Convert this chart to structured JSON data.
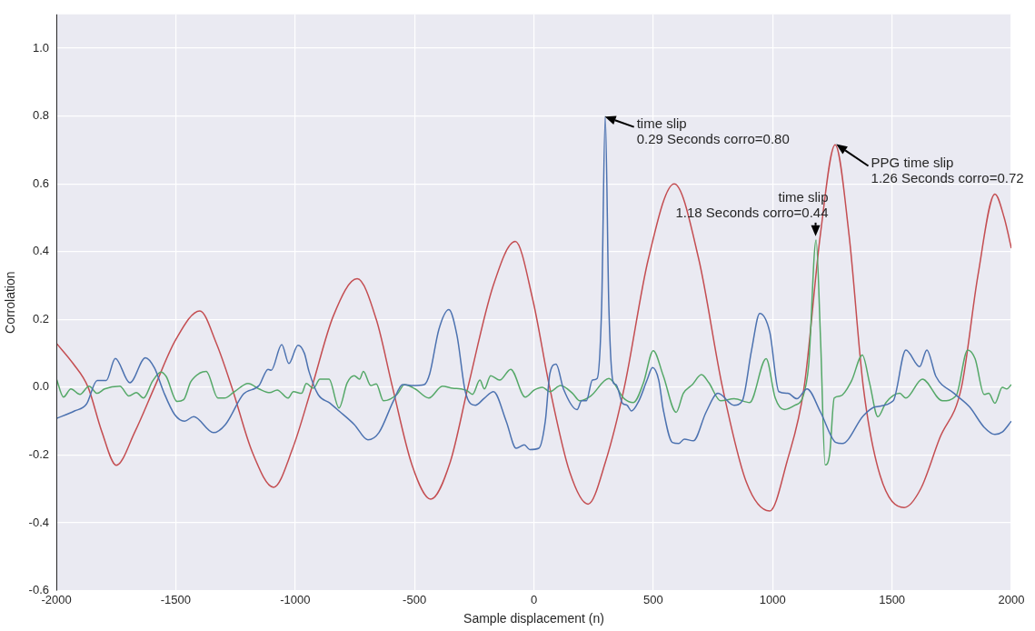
{
  "chart_data": {
    "type": "line",
    "xlabel": "Sample displacement (n)",
    "ylabel": "Corrolation",
    "xlim": [
      -2000,
      2000
    ],
    "ylim": [
      -0.6,
      1.1
    ],
    "xticks": [
      -2000,
      -1500,
      -1000,
      -500,
      0,
      500,
      1000,
      1500,
      2000
    ],
    "yticks": [
      {
        "value": -0.6,
        "label": "-0.6"
      },
      {
        "value": -0.4,
        "label": "-0.4"
      },
      {
        "value": -0.2,
        "label": "-0.2"
      },
      {
        "value": 0,
        "label": "0.0"
      },
      {
        "value": 0.2,
        "label": "0.2"
      },
      {
        "value": 0.4,
        "label": "0.4"
      },
      {
        "value": 0.6,
        "label": "0.6"
      },
      {
        "value": 0.8,
        "label": "0.8"
      },
      {
        "value": 1,
        "label": "1.0"
      }
    ],
    "grid": true,
    "legend": false,
    "marker": "none",
    "line_style": "solid",
    "series": [
      {
        "color": "#4c72b0",
        "x": [
          -2000,
          -1924,
          -1874,
          -1829,
          -1791,
          -1753,
          -1692,
          -1627,
          -1589,
          -1551,
          -1505,
          -1463,
          -1425,
          -1342,
          -1292,
          -1216,
          -1151,
          -1113,
          -1100,
          -1056,
          -1026,
          -988,
          -961,
          -942,
          -904,
          -854,
          -816,
          -752,
          -695,
          -649,
          -588,
          -550,
          -504,
          -459,
          -436,
          -398,
          -356,
          -322,
          -287,
          -245,
          -207,
          -169,
          -116,
          -74,
          -40,
          -17,
          21,
          48,
          67,
          93,
          124,
          181,
          200,
          220,
          245,
          265,
          284,
          299,
          314,
          333,
          344,
          371,
          390,
          409,
          440,
          474,
          497,
          523,
          542,
          580,
          607,
          630,
          668,
          721,
          771,
          839,
          873,
          912,
          946,
          988,
          1026,
          1064,
          1102,
          1144,
          1201,
          1265,
          1292,
          1380,
          1429,
          1505,
          1558,
          1616,
          1646,
          1684,
          1760,
          1825,
          1886,
          1931,
          1962,
          2000
        ],
        "values": [
          -0.092,
          -0.07,
          -0.05,
          0.02,
          0.02,
          0.085,
          0.013,
          0.087,
          0.057,
          -0.013,
          -0.08,
          -0.1,
          -0.087,
          -0.134,
          -0.11,
          -0.02,
          0.005,
          0.053,
          0.05,
          0.126,
          0.07,
          0.124,
          0.1,
          0.047,
          -0.021,
          -0.047,
          -0.07,
          -0.11,
          -0.155,
          -0.134,
          -0.04,
          0.008,
          0.005,
          0.008,
          0.04,
          0.17,
          0.229,
          0.153,
          -0.013,
          -0.053,
          -0.032,
          -0.013,
          -0.1,
          -0.18,
          -0.17,
          -0.184,
          -0.18,
          -0.1,
          0.04,
          0.068,
          -0.005,
          -0.066,
          -0.04,
          -0.04,
          0.021,
          0.026,
          0.24,
          0.8,
          0.24,
          0.013,
          0.008,
          -0.047,
          -0.053,
          -0.07,
          -0.04,
          0.021,
          0.058,
          0.021,
          -0.066,
          -0.163,
          -0.166,
          -0.153,
          -0.158,
          -0.074,
          -0.018,
          -0.053,
          -0.04,
          0.11,
          0.218,
          0.163,
          -0.013,
          -0.018,
          -0.034,
          -0.005,
          -0.074,
          -0.163,
          -0.166,
          -0.084,
          -0.058,
          -0.04,
          0.11,
          0.061,
          0.11,
          0.032,
          -0.018,
          -0.058,
          -0.118,
          -0.139,
          -0.132,
          -0.1
        ]
      },
      {
        "color": "#55a868",
        "x": [
          -2000,
          -1970,
          -1939,
          -1901,
          -1863,
          -1829,
          -1798,
          -1734,
          -1696,
          -1665,
          -1635,
          -1597,
          -1562,
          -1540,
          -1494,
          -1467,
          -1437,
          -1399,
          -1372,
          -1323,
          -1296,
          -1254,
          -1197,
          -1151,
          -1106,
          -1075,
          -1030,
          -1007,
          -973,
          -953,
          -923,
          -896,
          -858,
          -816,
          -782,
          -752,
          -730,
          -714,
          -683,
          -660,
          -630,
          -573,
          -542,
          -497,
          -440,
          -383,
          -340,
          -306,
          -280,
          -257,
          -226,
          -207,
          -181,
          -143,
          -97,
          -36,
          2,
          36,
          67,
          112,
          162,
          192,
          238,
          314,
          379,
          417,
          459,
          500,
          542,
          596,
          626,
          664,
          702,
          733,
          782,
          839,
          904,
          973,
          1011,
          1049,
          1094,
          1125,
          1151,
          1182,
          1201,
          1220,
          1239,
          1258,
          1284,
          1330,
          1376,
          1406,
          1441,
          1475,
          1532,
          1558,
          1627,
          1711,
          1768,
          1817,
          1848,
          1886,
          1905,
          1931,
          1962,
          1981,
          2000
        ],
        "values": [
          0.026,
          -0.029,
          -0.005,
          -0.021,
          0.003,
          -0.018,
          -0.005,
          0.003,
          -0.026,
          -0.016,
          -0.032,
          0.018,
          0.045,
          0.032,
          -0.042,
          -0.037,
          0.016,
          0.042,
          0.047,
          -0.032,
          -0.032,
          -0.013,
          0.011,
          -0.005,
          -0.016,
          -0.008,
          -0.032,
          -0.013,
          -0.018,
          0.011,
          -0.003,
          0.024,
          0.024,
          -0.061,
          0.013,
          0.034,
          0.024,
          0.047,
          0.005,
          0.01,
          -0.04,
          -0.021,
          0.008,
          -0.005,
          -0.032,
          0.003,
          -0.003,
          -0.005,
          -0.01,
          -0.021,
          0.021,
          -0.005,
          0.034,
          0.021,
          0.053,
          -0.029,
          -0.008,
          0.0,
          -0.013,
          0.005,
          -0.018,
          -0.04,
          -0.026,
          0.026,
          -0.034,
          -0.045,
          0.013,
          0.108,
          0.034,
          -0.074,
          -0.018,
          0.008,
          0.037,
          0.013,
          -0.04,
          -0.034,
          -0.045,
          0.084,
          -0.032,
          -0.066,
          -0.053,
          -0.032,
          0.066,
          0.434,
          0.137,
          -0.229,
          -0.197,
          -0.032,
          -0.026,
          0.018,
          0.095,
          0.013,
          -0.087,
          -0.045,
          -0.018,
          -0.032,
          0.024,
          -0.04,
          -0.026,
          0.11,
          0.084,
          -0.021,
          -0.018,
          -0.047,
          0.0,
          -0.005,
          0.008
        ]
      },
      {
        "color": "#c44e52",
        "x": [
          -2000,
          -1930,
          -1867,
          -1810,
          -1749,
          -1670,
          -1589,
          -1500,
          -1399,
          -1330,
          -1265,
          -1180,
          -1090,
          -1010,
          -930,
          -840,
          -740,
          -660,
          -592,
          -510,
          -432,
          -350,
          -276,
          -170,
          -78,
          -5,
          66,
          150,
          227,
          300,
          379,
          480,
          588,
          690,
          790,
          890,
          988,
          1060,
          1132,
          1200,
          1262,
          1320,
          1380,
          1450,
          1551,
          1620,
          1700,
          1791,
          1860,
          1931,
          1970,
          2000
        ],
        "values": [
          0.13,
          0.07,
          0.0,
          -0.13,
          -0.23,
          -0.13,
          0.0,
          0.14,
          0.225,
          0.13,
          0.0,
          -0.19,
          -0.295,
          -0.18,
          0.0,
          0.21,
          0.32,
          0.2,
          0.0,
          -0.23,
          -0.33,
          -0.22,
          0.0,
          0.3,
          0.43,
          0.26,
          0.0,
          -0.25,
          -0.345,
          -0.22,
          0.0,
          0.38,
          0.6,
          0.38,
          0.0,
          -0.28,
          -0.365,
          -0.22,
          0.0,
          0.45,
          0.715,
          0.45,
          0.0,
          -0.26,
          -0.355,
          -0.3,
          -0.15,
          0.0,
          0.33,
          0.57,
          0.5,
          0.41
        ]
      }
    ],
    "annotations": [
      {
        "text": "time slip\n0.29 Seconds corro=0.80",
        "x": 290,
        "y": 0.8
      },
      {
        "text": "time slip\n1.18 Seconds corro=0.44",
        "x": 1180,
        "y": 0.44
      },
      {
        "text": "PPG time slip\n1.26 Seconds corro=0.72",
        "x": 1260,
        "y": 0.72
      }
    ]
  }
}
